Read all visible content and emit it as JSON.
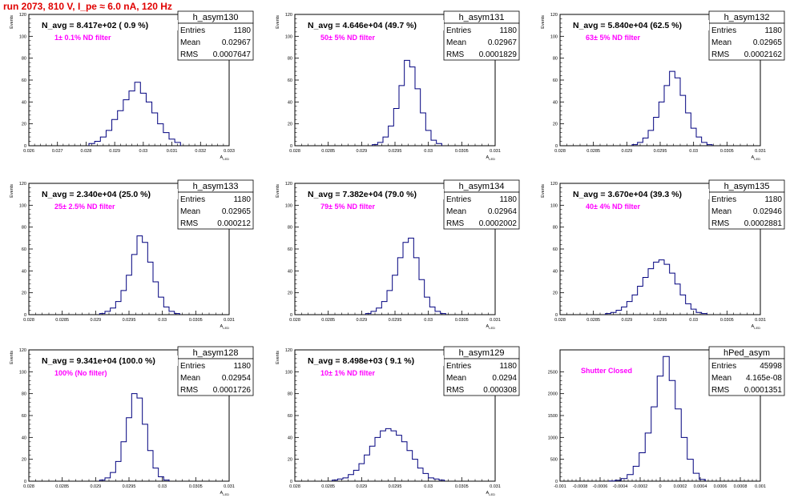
{
  "header": {
    "title": "run 2073,   810 V, I_pe ≈ 6.0 nA, 120 Hz"
  },
  "colors": {
    "histogram": "#00007f",
    "annotation": "#ff00ff",
    "run_title": "#e00000",
    "frame": "#000000"
  },
  "chart_data": [
    {
      "type": "histogram",
      "hist_name": "h_asym130",
      "nlabel": "N_avg = 8.417e+02 ( 0.9 %)",
      "filter": "1± 0.1% ND filter",
      "stats": [
        [
          "Entries",
          "1180"
        ],
        [
          "Mean",
          "0.02967"
        ],
        [
          "RMS",
          "0.0007647"
        ]
      ],
      "xlabel": "A_{LED}",
      "ylabel": "Events",
      "xlim": [
        0.026,
        0.033
      ],
      "ylim": [
        0,
        120
      ],
      "xticks": [
        "0.026",
        "0.027",
        "0.028",
        "0.029",
        "0.03",
        "0.031",
        "0.032",
        "0.033"
      ],
      "yticks": [
        "0",
        "20",
        "40",
        "60",
        "80",
        "100",
        "120"
      ],
      "x": [
        0.0282,
        0.0284,
        0.0286,
        0.0288,
        0.029,
        0.0292,
        0.0294,
        0.0296,
        0.0298,
        0.03,
        0.0302,
        0.0304,
        0.0306,
        0.0308,
        0.031,
        0.0312
      ],
      "values": [
        2,
        4,
        8,
        14,
        24,
        32,
        42,
        50,
        58,
        48,
        40,
        30,
        20,
        12,
        6,
        3
      ]
    },
    {
      "type": "histogram",
      "hist_name": "h_asym131",
      "nlabel": "N_avg = 4.646e+04 (49.7 %)",
      "filter": "50± 5% ND filter",
      "stats": [
        [
          "Entries",
          "1180"
        ],
        [
          "Mean",
          "0.02967"
        ],
        [
          "RMS",
          "0.0001829"
        ]
      ],
      "xlabel": "A_{LED}",
      "ylabel": "Events",
      "xlim": [
        0.028,
        0.031
      ],
      "ylim": [
        0,
        120
      ],
      "xticks": [
        "0.028",
        "0.0285",
        "0.029",
        "0.0295",
        "0.03",
        "0.0305",
        "0.031"
      ],
      "yticks": [
        "0",
        "20",
        "40",
        "60",
        "80",
        "100",
        "120"
      ],
      "x": [
        0.0292,
        0.02928,
        0.02936,
        0.02944,
        0.02952,
        0.0296,
        0.02968,
        0.02976,
        0.02984,
        0.02992,
        0.03,
        0.03008,
        0.03016
      ],
      "values": [
        1,
        3,
        8,
        18,
        34,
        55,
        78,
        72,
        52,
        30,
        14,
        5,
        2
      ]
    },
    {
      "type": "histogram",
      "hist_name": "h_asym132",
      "nlabel": "N_avg = 5.840e+04 (62.5 %)",
      "filter": "63± 5% ND filter",
      "stats": [
        [
          "Entries",
          "1180"
        ],
        [
          "Mean",
          "0.02965"
        ],
        [
          "RMS",
          "0.0002162"
        ]
      ],
      "xlabel": "A_{LED}",
      "ylabel": "Events",
      "xlim": [
        0.028,
        0.031
      ],
      "ylim": [
        0,
        120
      ],
      "xticks": [
        "0.028",
        "0.0285",
        "0.029",
        "0.0295",
        "0.03",
        "0.0305",
        "0.031"
      ],
      "yticks": [
        "0",
        "20",
        "40",
        "60",
        "80",
        "100",
        "120"
      ],
      "x": [
        0.02912,
        0.0292,
        0.02928,
        0.02936,
        0.02944,
        0.02952,
        0.0296,
        0.02968,
        0.02976,
        0.02984,
        0.02992,
        0.03,
        0.03008,
        0.03016,
        0.03024
      ],
      "values": [
        1,
        3,
        7,
        14,
        26,
        40,
        55,
        68,
        62,
        46,
        30,
        16,
        8,
        3,
        1
      ]
    },
    {
      "type": "histogram",
      "hist_name": "h_asym133",
      "nlabel": "N_avg = 2.340e+04 (25.0 %)",
      "filter": "25± 2.5% ND filter",
      "stats": [
        [
          "Entries",
          "1180"
        ],
        [
          "Mean",
          "0.02965"
        ],
        [
          "RMS",
          "0.000212"
        ]
      ],
      "xlabel": "A_{LED}",
      "ylabel": "Events",
      "xlim": [
        0.028,
        0.031
      ],
      "ylim": [
        0,
        120
      ],
      "xticks": [
        "0.028",
        "0.0285",
        "0.029",
        "0.0295",
        "0.03",
        "0.0305",
        "0.031"
      ],
      "yticks": [
        "0",
        "20",
        "40",
        "60",
        "80",
        "100",
        "120"
      ],
      "x": [
        0.0291,
        0.02918,
        0.02926,
        0.02934,
        0.02942,
        0.0295,
        0.02958,
        0.02966,
        0.02974,
        0.02982,
        0.0299,
        0.02998,
        0.03006,
        0.03014,
        0.03022
      ],
      "values": [
        1,
        3,
        6,
        12,
        22,
        36,
        55,
        72,
        66,
        48,
        30,
        16,
        7,
        3,
        1
      ]
    },
    {
      "type": "histogram",
      "hist_name": "h_asym134",
      "nlabel": "N_avg = 7.382e+04 (79.0 %)",
      "filter": "79± 5% ND filter",
      "stats": [
        [
          "Entries",
          "1180"
        ],
        [
          "Mean",
          "0.02964"
        ],
        [
          "RMS",
          "0.0002002"
        ]
      ],
      "xlabel": "A_{LED}",
      "ylabel": "Events",
      "xlim": [
        0.028,
        0.031
      ],
      "ylim": [
        0,
        120
      ],
      "xticks": [
        "0.028",
        "0.0285",
        "0.029",
        "0.0295",
        "0.03",
        "0.0305",
        "0.031"
      ],
      "yticks": [
        "0",
        "20",
        "40",
        "60",
        "80",
        "100",
        "120"
      ],
      "x": [
        0.0291,
        0.02918,
        0.02926,
        0.02934,
        0.02942,
        0.0295,
        0.02958,
        0.02966,
        0.02974,
        0.02982,
        0.0299,
        0.02998,
        0.03006,
        0.03014,
        0.03022
      ],
      "values": [
        1,
        3,
        6,
        12,
        22,
        36,
        52,
        66,
        70,
        52,
        32,
        16,
        7,
        3,
        1
      ]
    },
    {
      "type": "histogram",
      "hist_name": "h_asym135",
      "nlabel": "N_avg = 3.670e+04 (39.3 %)",
      "filter": "40± 4% ND filter",
      "stats": [
        [
          "Entries",
          "1180"
        ],
        [
          "Mean",
          "0.02946"
        ],
        [
          "RMS",
          "0.0002881"
        ]
      ],
      "xlabel": "A_{LED}",
      "ylabel": "Events",
      "xlim": [
        0.028,
        0.031
      ],
      "ylim": [
        0,
        120
      ],
      "xticks": [
        "0.028",
        "0.0285",
        "0.029",
        "0.0295",
        "0.03",
        "0.0305",
        "0.031"
      ],
      "yticks": [
        "0",
        "20",
        "40",
        "60",
        "80",
        "100",
        "120"
      ],
      "x": [
        0.02872,
        0.0288,
        0.02888,
        0.02896,
        0.02904,
        0.02912,
        0.0292,
        0.02928,
        0.02936,
        0.02944,
        0.02952,
        0.0296,
        0.02968,
        0.02976,
        0.02984,
        0.02992,
        0.03,
        0.03008,
        0.03016
      ],
      "values": [
        1,
        2,
        4,
        7,
        12,
        18,
        26,
        34,
        42,
        48,
        50,
        46,
        38,
        28,
        18,
        10,
        5,
        2,
        1
      ]
    },
    {
      "type": "histogram",
      "hist_name": "h_asym128",
      "nlabel": "N_avg = 9.341e+04 (100.0 %)",
      "filter": "100% (No filter)",
      "stats": [
        [
          "Entries",
          "1180"
        ],
        [
          "Mean",
          "0.02954"
        ],
        [
          "RMS",
          "0.0001726"
        ]
      ],
      "xlabel": "A_{LED}",
      "ylabel": "Events",
      "xlim": [
        0.028,
        0.031
      ],
      "ylim": [
        0,
        120
      ],
      "xticks": [
        "0.028",
        "0.0285",
        "0.029",
        "0.0295",
        "0.03",
        "0.0305",
        "0.031"
      ],
      "yticks": [
        "0",
        "20",
        "40",
        "60",
        "80",
        "100",
        "120"
      ],
      "x": [
        0.0291,
        0.02918,
        0.02926,
        0.02934,
        0.02942,
        0.0295,
        0.02958,
        0.02966,
        0.02974,
        0.02982,
        0.0299,
        0.02998,
        0.03006
      ],
      "values": [
        1,
        3,
        8,
        18,
        36,
        58,
        80,
        76,
        52,
        28,
        12,
        4,
        1
      ]
    },
    {
      "type": "histogram",
      "hist_name": "h_asym129",
      "nlabel": "N_avg = 8.498e+03 ( 9.1 %)",
      "filter": "10± 1% ND filter",
      "stats": [
        [
          "Entries",
          "1180"
        ],
        [
          "Mean",
          "0.0294"
        ],
        [
          "RMS",
          "0.000308"
        ]
      ],
      "xlabel": "A_{LED}",
      "ylabel": "Events",
      "xlim": [
        0.028,
        0.031
      ],
      "ylim": [
        0,
        120
      ],
      "xticks": [
        "0.028",
        "0.0285",
        "0.029",
        "0.0295",
        "0.03",
        "0.0305",
        "0.031"
      ],
      "yticks": [
        "0",
        "20",
        "40",
        "60",
        "80",
        "100",
        "120"
      ],
      "x": [
        0.0286,
        0.02868,
        0.02876,
        0.02884,
        0.02892,
        0.029,
        0.02908,
        0.02916,
        0.02924,
        0.02932,
        0.0294,
        0.02948,
        0.02956,
        0.02964,
        0.02972,
        0.0298,
        0.02988,
        0.02996,
        0.03004,
        0.03012,
        0.0302
      ],
      "values": [
        1,
        2,
        3,
        6,
        10,
        16,
        24,
        32,
        40,
        46,
        48,
        46,
        42,
        36,
        28,
        20,
        12,
        7,
        3,
        2,
        1
      ]
    },
    {
      "type": "histogram",
      "hist_name": "hPed_asym",
      "nlabel": "",
      "filter": "Shutter Closed",
      "stats": [
        [
          "Entries",
          "45998"
        ],
        [
          "Mean",
          "4.165e-08"
        ],
        [
          "RMS",
          "0.0001351"
        ]
      ],
      "xlabel": "",
      "ylabel": "",
      "xlim": [
        -0.001,
        0.001
      ],
      "ylim": [
        0,
        3000
      ],
      "xticks": [
        "-0.001",
        "-0.0008",
        "-0.0006",
        "-0.0004",
        "-0.0002",
        "0",
        "0.0002",
        "0.0004",
        "0.0006",
        "0.0008",
        "0.001"
      ],
      "yticks": [
        "0",
        "500",
        "1000",
        "1500",
        "2000",
        "2500"
      ],
      "x": [
        -0.00048,
        -0.00042,
        -0.00036,
        -0.0003,
        -0.00024,
        -0.00018,
        -0.00012,
        -6e-05,
        0,
        6e-05,
        0.00012,
        0.00018,
        0.00024,
        0.0003,
        0.00036,
        0.00042
      ],
      "values": [
        5,
        20,
        60,
        150,
        340,
        650,
        1100,
        1700,
        2400,
        2850,
        2300,
        1650,
        1000,
        500,
        180,
        40
      ]
    }
  ]
}
